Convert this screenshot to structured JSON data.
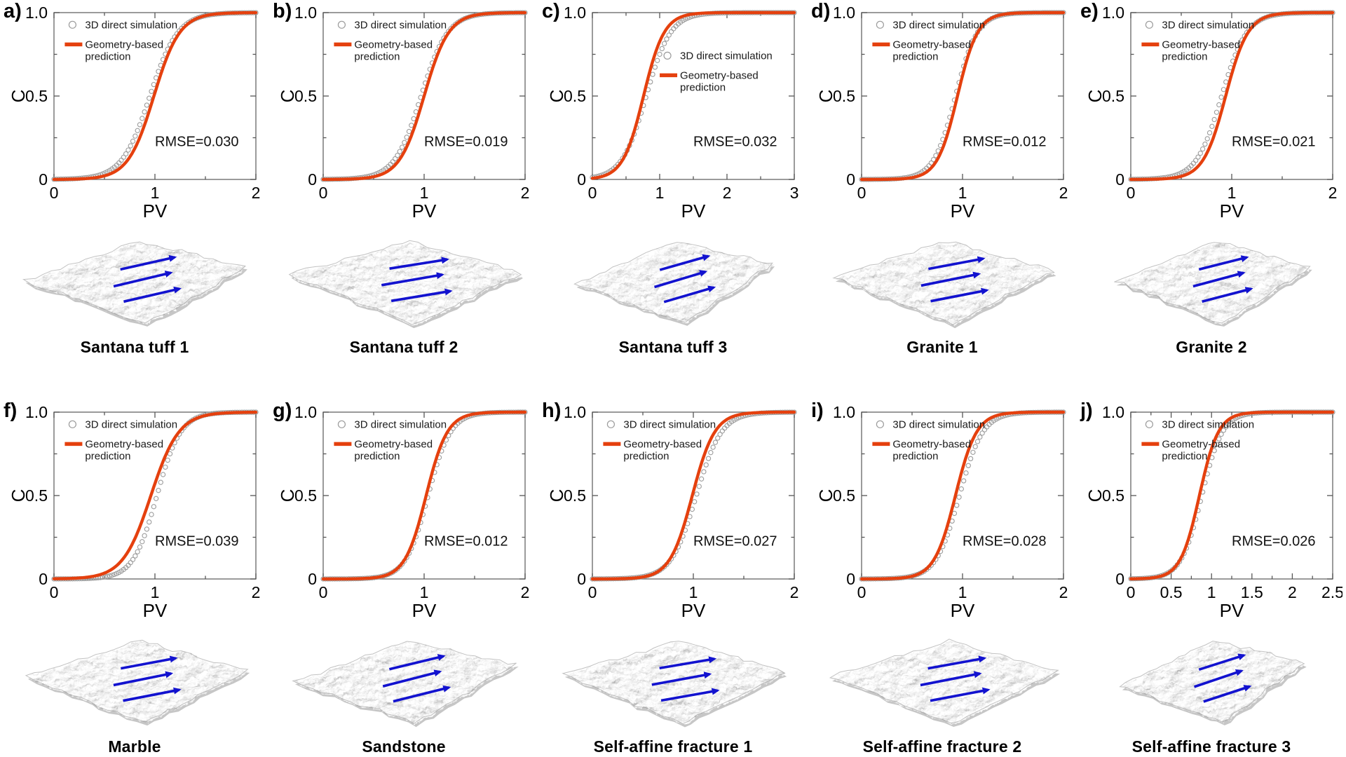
{
  "axis": {
    "xlabel": "PV",
    "ylabel": "C"
  },
  "legend": {
    "sim_label": "3D direct simulation",
    "pred_label": "Geometry-based prediction",
    "pred_label_lines": [
      "Geometry-based",
      "prediction"
    ]
  },
  "colors": {
    "prediction_line": "#e5400e",
    "simulation_marker": "#9c9c9c",
    "frame": "#707070",
    "tick": "#565656",
    "text": "#000000",
    "legend_text": "#1a1a1a",
    "arrow_blue": "#1212cf",
    "rock_base": "#b2b2b2",
    "rock_under": "#c6c6c6"
  },
  "chart_data": [
    {
      "panel_label": "a)",
      "specimen": "Santana tuff 1",
      "type": "line+scatter",
      "xlabel": "PV",
      "ylabel": "C",
      "xlim": [
        0,
        2
      ],
      "ylim": [
        0,
        1
      ],
      "xticks": [
        0,
        1,
        2
      ],
      "xtick_labels": [
        "0",
        "1",
        "2"
      ],
      "x_minor_step": 0.5,
      "yticks": [
        0,
        0.5,
        1
      ],
      "ytick_labels": [
        "0",
        "0.5",
        "1.0"
      ],
      "y_minor_step": 0.25,
      "rmse_text": "RMSE=0.030",
      "rmse_value": 0.03,
      "legend_pos": {
        "x": 0.05,
        "y": 0.035
      },
      "rmse_pos": {
        "x": 0.5,
        "y": 0.8
      },
      "series": [
        {
          "name": "3D direct simulation",
          "style": "scatter",
          "marker": "open-circle",
          "color": "#9c9c9c",
          "sigmoid_x0": 0.95,
          "sigmoid_k": 7.2
        },
        {
          "name": "Geometry-based prediction",
          "style": "line",
          "color": "#e5400e",
          "sigmoid_x0": 0.99,
          "sigmoid_k": 7.8
        }
      ],
      "surface": {
        "seed": 7,
        "rotate": -1,
        "sx": 1.0
      }
    },
    {
      "panel_label": "b)",
      "specimen": "Santana tuff 2",
      "type": "line+scatter",
      "xlabel": "PV",
      "ylabel": "C",
      "xlim": [
        0,
        2
      ],
      "ylim": [
        0,
        1
      ],
      "xticks": [
        0,
        1,
        2
      ],
      "xtick_labels": [
        "0",
        "1",
        "2"
      ],
      "x_minor_step": 0.5,
      "yticks": [
        0,
        0.5,
        1
      ],
      "ytick_labels": [
        "0",
        "0.5",
        "1.0"
      ],
      "y_minor_step": 0.25,
      "rmse_text": "RMSE=0.019",
      "rmse_value": 0.019,
      "legend_pos": {
        "x": 0.05,
        "y": 0.035
      },
      "rmse_pos": {
        "x": 0.5,
        "y": 0.8
      },
      "series": [
        {
          "name": "3D direct simulation",
          "style": "scatter",
          "marker": "open-circle",
          "color": "#9c9c9c",
          "sigmoid_x0": 0.97,
          "sigmoid_k": 7.6
        },
        {
          "name": "Geometry-based prediction",
          "style": "line",
          "color": "#e5400e",
          "sigmoid_x0": 1.0,
          "sigmoid_k": 8.2
        }
      ],
      "surface": {
        "seed": 13,
        "rotate": 2,
        "sx": 1.05
      }
    },
    {
      "panel_label": "c)",
      "specimen": "Santana tuff 3",
      "type": "line+scatter",
      "xlabel": "PV",
      "ylabel": "C",
      "xlim": [
        0,
        3
      ],
      "ylim": [
        0,
        1
      ],
      "xticks": [
        0,
        1,
        2,
        3
      ],
      "xtick_labels": [
        "0",
        "1",
        "2",
        "3"
      ],
      "x_minor_step": 0.5,
      "yticks": [
        0,
        0.5,
        1
      ],
      "ytick_labels": [
        "0",
        "0.5",
        "1.0"
      ],
      "y_minor_step": 0.25,
      "rmse_text": "RMSE=0.032",
      "rmse_value": 0.032,
      "legend_pos": {
        "x": 0.33,
        "y": 0.22
      },
      "rmse_pos": {
        "x": 0.5,
        "y": 0.8
      },
      "series": [
        {
          "name": "3D direct simulation",
          "style": "scatter",
          "marker": "open-circle",
          "color": "#9c9c9c",
          "sigmoid_x0": 0.8,
          "sigmoid_k": 5.5
        },
        {
          "name": "Geometry-based prediction",
          "style": "line",
          "color": "#e5400e",
          "sigmoid_x0": 0.76,
          "sigmoid_k": 6.5
        }
      ],
      "surface": {
        "seed": 21,
        "rotate": -3,
        "sx": 0.9
      }
    },
    {
      "panel_label": "d)",
      "specimen": "Granite 1",
      "type": "line+scatter",
      "xlabel": "PV",
      "ylabel": "C",
      "xlim": [
        0,
        2
      ],
      "ylim": [
        0,
        1
      ],
      "xticks": [
        0,
        1,
        2
      ],
      "xtick_labels": [
        "0",
        "1",
        "2"
      ],
      "x_minor_step": 0.5,
      "yticks": [
        0,
        0.5,
        1
      ],
      "ytick_labels": [
        "0",
        "0.5",
        "1.0"
      ],
      "y_minor_step": 0.25,
      "rmse_text": "RMSE=0.012",
      "rmse_value": 0.012,
      "legend_pos": {
        "x": 0.05,
        "y": 0.035
      },
      "rmse_pos": {
        "x": 0.5,
        "y": 0.8
      },
      "series": [
        {
          "name": "3D direct simulation",
          "style": "scatter",
          "marker": "open-circle",
          "color": "#9c9c9c",
          "sigmoid_x0": 0.93,
          "sigmoid_k": 9.2
        },
        {
          "name": "Geometry-based prediction",
          "style": "line",
          "color": "#e5400e",
          "sigmoid_x0": 0.95,
          "sigmoid_k": 10.0
        }
      ],
      "surface": {
        "seed": 5,
        "rotate": 1,
        "sx": 1.0
      }
    },
    {
      "panel_label": "e)",
      "specimen": "Granite 2",
      "type": "line+scatter",
      "xlabel": "PV",
      "ylabel": "C",
      "xlim": [
        0,
        2
      ],
      "ylim": [
        0,
        1
      ],
      "xticks": [
        0,
        1,
        2
      ],
      "xtick_labels": [
        "0",
        "1",
        "2"
      ],
      "x_minor_step": 0.5,
      "yticks": [
        0,
        0.5,
        1
      ],
      "ytick_labels": [
        "0",
        "0.5",
        "1.0"
      ],
      "y_minor_step": 0.25,
      "rmse_text": "RMSE=0.021",
      "rmse_value": 0.021,
      "legend_pos": {
        "x": 0.05,
        "y": 0.035
      },
      "rmse_pos": {
        "x": 0.5,
        "y": 0.8
      },
      "series": [
        {
          "name": "3D direct simulation",
          "style": "scatter",
          "marker": "open-circle",
          "color": "#9c9c9c",
          "sigmoid_x0": 0.9,
          "sigmoid_k": 8.0
        },
        {
          "name": "Geometry-based prediction",
          "style": "line",
          "color": "#e5400e",
          "sigmoid_x0": 0.94,
          "sigmoid_k": 9.0
        }
      ],
      "surface": {
        "seed": 9,
        "rotate": -1,
        "sx": 0.88
      }
    },
    {
      "panel_label": "f)",
      "specimen": "Marble",
      "type": "line+scatter",
      "xlabel": "PV",
      "ylabel": "C",
      "xlim": [
        0,
        2
      ],
      "ylim": [
        0,
        1
      ],
      "xticks": [
        0,
        1,
        2
      ],
      "xtick_labels": [
        "0",
        "1",
        "2"
      ],
      "x_minor_step": 0.5,
      "yticks": [
        0,
        0.5,
        1
      ],
      "ytick_labels": [
        "0",
        "0.5",
        "1.0"
      ],
      "y_minor_step": 0.25,
      "rmse_text": "RMSE=0.039",
      "rmse_value": 0.039,
      "legend_pos": {
        "x": 0.05,
        "y": 0.035
      },
      "rmse_pos": {
        "x": 0.5,
        "y": 0.8
      },
      "series": [
        {
          "name": "3D direct simulation",
          "style": "scatter",
          "marker": "open-circle",
          "color": "#9c9c9c",
          "sigmoid_x0": 1.02,
          "sigmoid_k": 8.5
        },
        {
          "name": "Geometry-based prediction",
          "style": "line",
          "color": "#e5400e",
          "sigmoid_x0": 0.96,
          "sigmoid_k": 7.2
        }
      ],
      "surface": {
        "seed": 17,
        "rotate": 1,
        "sx": 1.0
      }
    },
    {
      "panel_label": "g)",
      "specimen": "Sandstone",
      "type": "line+scatter",
      "xlabel": "PV",
      "ylabel": "C",
      "xlim": [
        0,
        2
      ],
      "ylim": [
        0,
        1
      ],
      "xticks": [
        0,
        1,
        2
      ],
      "xtick_labels": [
        "0",
        "1",
        "2"
      ],
      "x_minor_step": 0.5,
      "yticks": [
        0,
        0.5,
        1
      ],
      "ytick_labels": [
        "0",
        "0.5",
        "1.0"
      ],
      "y_minor_step": 0.25,
      "rmse_text": "RMSE=0.012",
      "rmse_value": 0.012,
      "legend_pos": {
        "x": 0.05,
        "y": 0.035
      },
      "rmse_pos": {
        "x": 0.5,
        "y": 0.8
      },
      "series": [
        {
          "name": "3D direct simulation",
          "style": "scatter",
          "marker": "open-circle",
          "color": "#9c9c9c",
          "sigmoid_x0": 1.04,
          "sigmoid_k": 9.0
        },
        {
          "name": "Geometry-based prediction",
          "style": "line",
          "color": "#e5400e",
          "sigmoid_x0": 1.02,
          "sigmoid_k": 9.5
        }
      ],
      "surface": {
        "seed": 23,
        "rotate": -2,
        "sx": 1.0
      }
    },
    {
      "panel_label": "h)",
      "specimen": "Self-affine fracture 1",
      "type": "line+scatter",
      "xlabel": "PV",
      "ylabel": "C",
      "xlim": [
        0,
        2
      ],
      "ylim": [
        0,
        1
      ],
      "xticks": [
        0,
        1,
        2
      ],
      "xtick_labels": [
        "0",
        "1",
        "2"
      ],
      "x_minor_step": 0.5,
      "yticks": [
        0,
        0.5,
        1
      ],
      "ytick_labels": [
        "0",
        "0.5",
        "1.0"
      ],
      "y_minor_step": 0.25,
      "rmse_text": "RMSE=0.027",
      "rmse_value": 0.027,
      "legend_pos": {
        "x": 0.05,
        "y": 0.035
      },
      "rmse_pos": {
        "x": 0.5,
        "y": 0.8
      },
      "series": [
        {
          "name": "3D direct simulation",
          "style": "scatter",
          "marker": "open-circle",
          "color": "#9c9c9c",
          "sigmoid_x0": 1.03,
          "sigmoid_k": 8.0
        },
        {
          "name": "Geometry-based prediction",
          "style": "line",
          "color": "#e5400e",
          "sigmoid_x0": 0.99,
          "sigmoid_k": 9.0
        }
      ],
      "surface": {
        "seed": 29,
        "rotate": 2,
        "sx": 1.0
      }
    },
    {
      "panel_label": "i)",
      "specimen": "Self-affine fracture 2",
      "type": "line+scatter",
      "xlabel": "PV",
      "ylabel": "C",
      "xlim": [
        0,
        2
      ],
      "ylim": [
        0,
        1
      ],
      "xticks": [
        0,
        1,
        2
      ],
      "xtick_labels": [
        "0",
        "1",
        "2"
      ],
      "x_minor_step": 0.5,
      "yticks": [
        0,
        0.5,
        1
      ],
      "ytick_labels": [
        "0",
        "0.5",
        "1.0"
      ],
      "y_minor_step": 0.25,
      "rmse_text": "RMSE=0.028",
      "rmse_value": 0.028,
      "legend_pos": {
        "x": 0.05,
        "y": 0.035
      },
      "rmse_pos": {
        "x": 0.5,
        "y": 0.8
      },
      "series": [
        {
          "name": "3D direct simulation",
          "style": "scatter",
          "marker": "open-circle",
          "color": "#9c9c9c",
          "sigmoid_x0": 0.97,
          "sigmoid_k": 8.6
        },
        {
          "name": "Geometry-based prediction",
          "style": "line",
          "color": "#e5400e",
          "sigmoid_x0": 0.93,
          "sigmoid_k": 9.5
        }
      ],
      "surface": {
        "seed": 31,
        "rotate": 1,
        "sx": 1.03
      }
    },
    {
      "panel_label": "j)",
      "specimen": "Self-affine fracture 3",
      "type": "line+scatter",
      "xlabel": "PV",
      "ylabel": "C",
      "xlim": [
        0,
        2.5
      ],
      "ylim": [
        0,
        1
      ],
      "xticks": [
        0,
        0.5,
        1,
        1.5,
        2,
        2.5
      ],
      "xtick_labels": [
        "0",
        "0.5",
        "1",
        "1.5",
        "2",
        "2.5"
      ],
      "x_minor_step": 0.25,
      "yticks": [
        0,
        0.5,
        1
      ],
      "ytick_labels": [
        "0",
        "0.5",
        "1.0"
      ],
      "y_minor_step": 0.25,
      "rmse_text": "RMSE=0.026",
      "rmse_value": 0.026,
      "legend_pos": {
        "x": 0.05,
        "y": 0.035
      },
      "rmse_pos": {
        "x": 0.5,
        "y": 0.8
      },
      "series": [
        {
          "name": "3D direct simulation",
          "style": "scatter",
          "marker": "open-circle",
          "color": "#9c9c9c",
          "sigmoid_x0": 0.88,
          "sigmoid_k": 7.8
        },
        {
          "name": "Geometry-based prediction",
          "style": "line",
          "color": "#e5400e",
          "sigmoid_x0": 0.85,
          "sigmoid_k": 8.5
        }
      ],
      "surface": {
        "seed": 37,
        "rotate": -4,
        "sx": 0.84
      }
    }
  ]
}
